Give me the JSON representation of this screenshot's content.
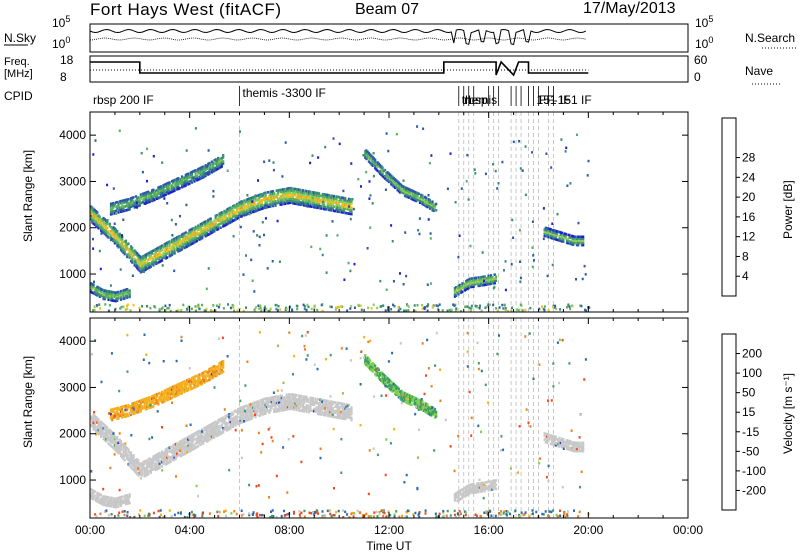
{
  "header": {
    "station": "Fort Hays West (fitACF)",
    "beam": "Beam 07",
    "date": "17/May/2013"
  },
  "noise_panel": {
    "left_label": "N.Sky",
    "right_label": "N.Search",
    "left_ticks": [
      "10^5",
      "10^0"
    ],
    "right_ticks": [
      "10^5",
      "10^0"
    ]
  },
  "freq_panel": {
    "left_label_1": "Freq.",
    "left_label_2": "[MHz]",
    "right_label": "Nave",
    "left_ticks": [
      "18",
      "8"
    ],
    "right_ticks": [
      "60",
      "0"
    ]
  },
  "cpid": {
    "label": "CPID",
    "entries": [
      {
        "t_hours": 0.0,
        "text": "rbsp 200 IF"
      },
      {
        "t_hours": 6.0,
        "text": "themis -3300 IF"
      },
      {
        "t_hours": 14.8,
        "text": "themis"
      },
      {
        "t_hours": 14.9,
        "text": "rbsp"
      },
      {
        "t_hours": 17.9,
        "text": "FF-151 IF"
      },
      {
        "t_hours": 17.8,
        "text": "151 IF"
      }
    ],
    "boundaries_hours": [
      6.0,
      14.8,
      15.0,
      15.2,
      15.4,
      16.0,
      16.2,
      16.4,
      16.9,
      17.1,
      17.3,
      17.6,
      17.8,
      18.0,
      18.4,
      18.6
    ]
  },
  "chart_data": [
    {
      "type": "heatmap",
      "panel": "power",
      "ylabel": "Slant Range [km]",
      "xlabel": "Time UT",
      "xlim": [
        0,
        24
      ],
      "ylim": [
        180,
        4500
      ],
      "y_ticks": [
        1000,
        2000,
        3000,
        4000
      ],
      "x_tick_labels": [
        "00:00",
        "04:00",
        "08:00",
        "12:00",
        "16:00",
        "20:00",
        "00:00"
      ],
      "colorbar": {
        "label": "Power [dB]",
        "ticks": [
          4,
          8,
          12,
          16,
          20,
          24,
          28
        ],
        "colors": [
          "#1e1ed2",
          "#2c5aa8",
          "#3a8c7a",
          "#59b05f",
          "#8fca5a",
          "#f0c020",
          "#f79a22",
          "#f36a22",
          "#e3241e"
        ]
      },
      "echo_bands": [
        {
          "t": [
            0.0,
            1.0,
            2.0,
            3.0,
            4.0,
            5.0,
            6.0,
            7.0,
            8.0,
            9.0,
            10.0,
            10.5
          ],
          "range": [
            2300,
            1800,
            1200,
            1500,
            1800,
            2100,
            2400,
            2600,
            2700,
            2600,
            2500,
            2450
          ],
          "width": 350,
          "power": 20
        },
        {
          "t": [
            0.8,
            1.5,
            2.5,
            3.5,
            4.5,
            5.3
          ],
          "range": [
            2400,
            2500,
            2700,
            2950,
            3200,
            3450
          ],
          "width": 250,
          "power": 12
        },
        {
          "t": [
            11.0,
            11.7,
            12.5,
            13.3,
            13.9
          ],
          "range": [
            3600,
            3200,
            2800,
            2600,
            2400
          ],
          "width": 200,
          "power": 14
        },
        {
          "t": [
            14.6,
            15.2,
            15.8,
            16.3
          ],
          "range": [
            600,
            800,
            850,
            900
          ],
          "width": 200,
          "power": 16
        },
        {
          "t": [
            18.2,
            18.8,
            19.4,
            19.8
          ],
          "range": [
            1900,
            1800,
            1700,
            1700
          ],
          "width": 180,
          "power": 14
        },
        {
          "t": [
            0.0,
            0.5,
            1.0,
            1.6
          ],
          "range": [
            700,
            550,
            500,
            600
          ],
          "width": 200,
          "power": 14
        }
      ]
    },
    {
      "type": "heatmap",
      "panel": "velocity",
      "ylabel": "Slant Range [km]",
      "xlabel": "Time UT",
      "xlim": [
        0,
        24
      ],
      "ylim": [
        180,
        4500
      ],
      "y_ticks": [
        1000,
        2000,
        3000,
        4000
      ],
      "x_tick_labels": [
        "00:00",
        "04:00",
        "08:00",
        "12:00",
        "16:00",
        "20:00",
        "00:00"
      ],
      "colorbar": {
        "label": "Velocity [m s⁻¹]",
        "ticks": [
          200,
          100,
          50,
          15,
          -15,
          -50,
          -100,
          -200
        ],
        "colors": [
          "#1e1ed2",
          "#2a6ab0",
          "#3f9e66",
          "#7cd04a",
          "#c8c8c8",
          "#f0b020",
          "#f08020",
          "#ee4a1c",
          "#e31e1e"
        ]
      },
      "echo_bands": [
        {
          "t": [
            0.0,
            1.0,
            2.0,
            3.0,
            4.0,
            5.0,
            6.0,
            7.0,
            8.0,
            9.0,
            10.0,
            10.5
          ],
          "range": [
            2300,
            1800,
            1200,
            1500,
            1800,
            2100,
            2400,
            2600,
            2700,
            2600,
            2500,
            2450
          ],
          "width": 350,
          "velocity": 0
        },
        {
          "t": [
            0.8,
            1.5,
            2.5,
            3.5,
            4.5,
            5.3
          ],
          "range": [
            2400,
            2500,
            2700,
            2950,
            3200,
            3450
          ],
          "width": 250,
          "velocity": -40
        },
        {
          "t": [
            11.0,
            11.7,
            12.5,
            13.3,
            13.9
          ],
          "range": [
            3600,
            3200,
            2800,
            2600,
            2400
          ],
          "width": 200,
          "velocity": 30
        },
        {
          "t": [
            14.6,
            15.2,
            15.8,
            16.3
          ],
          "range": [
            600,
            800,
            850,
            900
          ],
          "width": 200,
          "velocity": 0
        },
        {
          "t": [
            18.2,
            18.8,
            19.4,
            19.8
          ],
          "range": [
            1900,
            1800,
            1700,
            1700
          ],
          "width": 180,
          "velocity": 0
        },
        {
          "t": [
            0.0,
            0.5,
            1.0,
            1.6
          ],
          "range": [
            700,
            550,
            500,
            600
          ],
          "width": 200,
          "velocity": 0
        }
      ]
    }
  ],
  "footer": {
    "xlabel": "Time UT"
  }
}
